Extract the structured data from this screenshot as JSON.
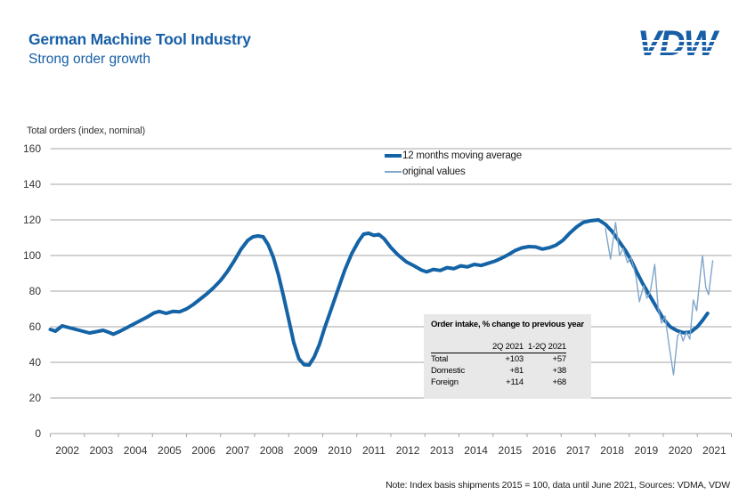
{
  "header": {
    "title": "German Machine Tool Industry",
    "subtitle": "Strong order growth",
    "logo_text": "VDW"
  },
  "colors": {
    "brand_blue": "#175fa6",
    "ma_line": "#1463a6",
    "original_line": "#7fa6cb",
    "gridline": "#a5a5a5",
    "axis_text": "#333333",
    "table_bg": "#e8e8e8"
  },
  "legend": [
    {
      "id": "ma",
      "label": "12 months moving average"
    },
    {
      "id": "orig",
      "label": "original values"
    }
  ],
  "inset_table": {
    "title": "Order intake, % change to previous year",
    "columns": [
      "2Q 2021",
      "1-2Q 2021"
    ],
    "rows": [
      {
        "label": "Total",
        "values": [
          "+103",
          "+57"
        ]
      },
      {
        "label": "Domestic",
        "values": [
          "+81",
          "+38"
        ]
      },
      {
        "label": "Foreign",
        "values": [
          "+114",
          "+68"
        ]
      }
    ]
  },
  "note": "Note: Index basis shipments 2015 = 100, data until June 2021, Sources: VDMA, VDW",
  "chart_data": {
    "type": "line",
    "title": "Total orders (index, nominal)",
    "ylabel": "Total orders (index, nominal)",
    "xlabel": "",
    "ylim": [
      0,
      160
    ],
    "y_ticks": [
      0,
      20,
      40,
      60,
      80,
      100,
      120,
      140,
      160
    ],
    "x_range": [
      2002,
      2022
    ],
    "x_tick_years": [
      2002,
      2003,
      2004,
      2005,
      2006,
      2007,
      2008,
      2009,
      2010,
      2011,
      2012,
      2013,
      2014,
      2015,
      2016,
      2017,
      2018,
      2019,
      2020,
      2021
    ],
    "grid": true,
    "legend_position": "top-center",
    "series": [
      {
        "name": "12 months moving average",
        "id": "ma-line",
        "color": "#1463a6",
        "width": 4,
        "points": [
          [
            2002.0,
            58.5
          ],
          [
            2002.15,
            57.5
          ],
          [
            2002.35,
            60.5
          ],
          [
            2002.55,
            59.5
          ],
          [
            2002.75,
            58.5
          ],
          [
            2002.95,
            57.5
          ],
          [
            2003.15,
            56.5
          ],
          [
            2003.35,
            57.2
          ],
          [
            2003.55,
            58
          ],
          [
            2003.7,
            57
          ],
          [
            2003.85,
            55.8
          ],
          [
            2004.05,
            57.5
          ],
          [
            2004.25,
            59.5
          ],
          [
            2004.45,
            61.5
          ],
          [
            2004.65,
            63.5
          ],
          [
            2004.85,
            65.5
          ],
          [
            2005.05,
            67.8
          ],
          [
            2005.2,
            68.6
          ],
          [
            2005.4,
            67.5
          ],
          [
            2005.6,
            68.6
          ],
          [
            2005.8,
            68.4
          ],
          [
            2006.0,
            70
          ],
          [
            2006.2,
            72.5
          ],
          [
            2006.4,
            75.5
          ],
          [
            2006.6,
            78.5
          ],
          [
            2006.8,
            82
          ],
          [
            2007.0,
            86
          ],
          [
            2007.2,
            91
          ],
          [
            2007.4,
            97
          ],
          [
            2007.6,
            103.5
          ],
          [
            2007.8,
            108.5
          ],
          [
            2007.95,
            110.5
          ],
          [
            2008.1,
            111
          ],
          [
            2008.25,
            110.5
          ],
          [
            2008.4,
            106
          ],
          [
            2008.55,
            99
          ],
          [
            2008.7,
            89
          ],
          [
            2008.85,
            77
          ],
          [
            2009.0,
            64
          ],
          [
            2009.15,
            51
          ],
          [
            2009.3,
            42
          ],
          [
            2009.45,
            38.7
          ],
          [
            2009.6,
            38.5
          ],
          [
            2009.75,
            43
          ],
          [
            2009.9,
            50
          ],
          [
            2010.05,
            59
          ],
          [
            2010.25,
            70
          ],
          [
            2010.45,
            81
          ],
          [
            2010.65,
            92
          ],
          [
            2010.85,
            101
          ],
          [
            2011.05,
            108
          ],
          [
            2011.2,
            112
          ],
          [
            2011.35,
            112.5
          ],
          [
            2011.5,
            111.3
          ],
          [
            2011.65,
            111.8
          ],
          [
            2011.8,
            109.5
          ],
          [
            2012.0,
            104.5
          ],
          [
            2012.2,
            100.5
          ],
          [
            2012.45,
            96.5
          ],
          [
            2012.7,
            94
          ],
          [
            2012.9,
            91.8
          ],
          [
            2013.05,
            90.8
          ],
          [
            2013.25,
            92.2
          ],
          [
            2013.45,
            91.6
          ],
          [
            2013.65,
            93.2
          ],
          [
            2013.85,
            92.6
          ],
          [
            2014.05,
            94.2
          ],
          [
            2014.25,
            93.6
          ],
          [
            2014.45,
            95
          ],
          [
            2014.65,
            94.4
          ],
          [
            2014.85,
            95.6
          ],
          [
            2015.05,
            96.8
          ],
          [
            2015.25,
            98.5
          ],
          [
            2015.45,
            100.5
          ],
          [
            2015.65,
            102.8
          ],
          [
            2015.85,
            104.3
          ],
          [
            2016.05,
            105
          ],
          [
            2016.25,
            104.8
          ],
          [
            2016.45,
            103.6
          ],
          [
            2016.65,
            104.4
          ],
          [
            2016.85,
            105.8
          ],
          [
            2017.05,
            108.5
          ],
          [
            2017.25,
            112.5
          ],
          [
            2017.45,
            116
          ],
          [
            2017.65,
            118.6
          ],
          [
            2017.85,
            119.5
          ],
          [
            2018.0,
            119.8
          ],
          [
            2018.1,
            120
          ],
          [
            2018.3,
            117.5
          ],
          [
            2018.5,
            113.5
          ],
          [
            2018.7,
            108
          ],
          [
            2018.9,
            102.5
          ],
          [
            2019.05,
            97.5
          ],
          [
            2019.2,
            91.5
          ],
          [
            2019.4,
            84
          ],
          [
            2019.6,
            77.5
          ],
          [
            2019.8,
            71
          ],
          [
            2020.0,
            64.5
          ],
          [
            2020.2,
            60
          ],
          [
            2020.4,
            57.8
          ],
          [
            2020.6,
            56.6
          ],
          [
            2020.8,
            57
          ],
          [
            2021.0,
            60
          ],
          [
            2021.15,
            63.5
          ],
          [
            2021.3,
            67.5
          ]
        ]
      },
      {
        "name": "original values",
        "id": "original-line",
        "color": "#7fa6cb",
        "width": 1.4,
        "points": [
          [
            2018.3,
            115
          ],
          [
            2018.45,
            98
          ],
          [
            2018.6,
            118.5
          ],
          [
            2018.72,
            100
          ],
          [
            2018.82,
            104
          ],
          [
            2018.95,
            96
          ],
          [
            2019.05,
            99
          ],
          [
            2019.2,
            88
          ],
          [
            2019.3,
            74
          ],
          [
            2019.42,
            83
          ],
          [
            2019.52,
            76
          ],
          [
            2019.62,
            80
          ],
          [
            2019.75,
            95
          ],
          [
            2019.85,
            70
          ],
          [
            2019.95,
            62
          ],
          [
            2020.05,
            66
          ],
          [
            2020.18,
            48
          ],
          [
            2020.3,
            33
          ],
          [
            2020.42,
            55
          ],
          [
            2020.5,
            57
          ],
          [
            2020.58,
            52
          ],
          [
            2020.68,
            57
          ],
          [
            2020.78,
            53
          ],
          [
            2020.88,
            75
          ],
          [
            2020.98,
            69
          ],
          [
            2021.08,
            88
          ],
          [
            2021.15,
            100
          ],
          [
            2021.25,
            82
          ],
          [
            2021.33,
            78
          ],
          [
            2021.45,
            97
          ]
        ]
      }
    ]
  }
}
